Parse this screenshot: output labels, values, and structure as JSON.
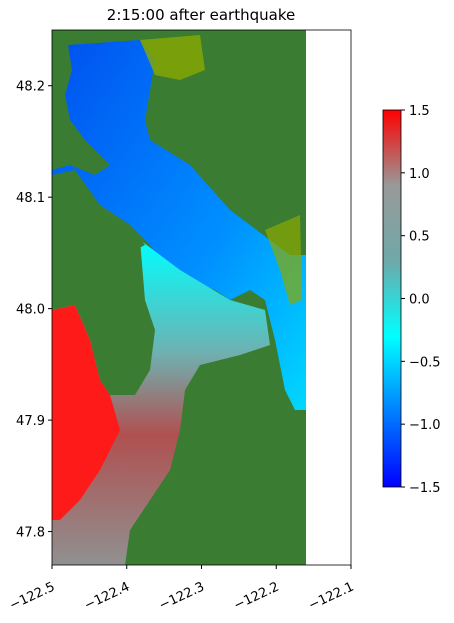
{
  "chart_data": {
    "type": "raster-map",
    "title": "2:15:00 after earthquake",
    "xlim": [
      -122.5,
      -122.1
    ],
    "xticks": [
      {
        "value": -122.5,
        "label": "−122.5"
      },
      {
        "value": -122.4,
        "label": "−122.4"
      },
      {
        "value": -122.3,
        "label": "−122.3"
      },
      {
        "value": -122.2,
        "label": "−122.2"
      },
      {
        "value": -122.1,
        "label": "−122.1"
      }
    ],
    "ylim": [
      47.77,
      48.25
    ],
    "yticks": [
      47.8,
      47.9,
      {
        "value": 48.0,
        "label": "48.0"
      },
      48.1,
      48.2
    ],
    "colorbar": {
      "clim": [
        -1.5,
        1.5
      ],
      "ticks": [
        {
          "value": -1.5,
          "label": "−1.5"
        },
        {
          "value": -1.0,
          "label": "−1.0"
        },
        {
          "value": -0.5,
          "label": "−0.5"
        },
        {
          "value": 0,
          "label": "0.0"
        },
        0.5,
        {
          "value": 1.0,
          "label": "1.0"
        },
        1.5
      ],
      "colors": [
        "#0000ff",
        "#0080ff",
        "#00ffff",
        "#6fa8a8",
        "#999999",
        "#ff0000"
      ]
    }
  }
}
